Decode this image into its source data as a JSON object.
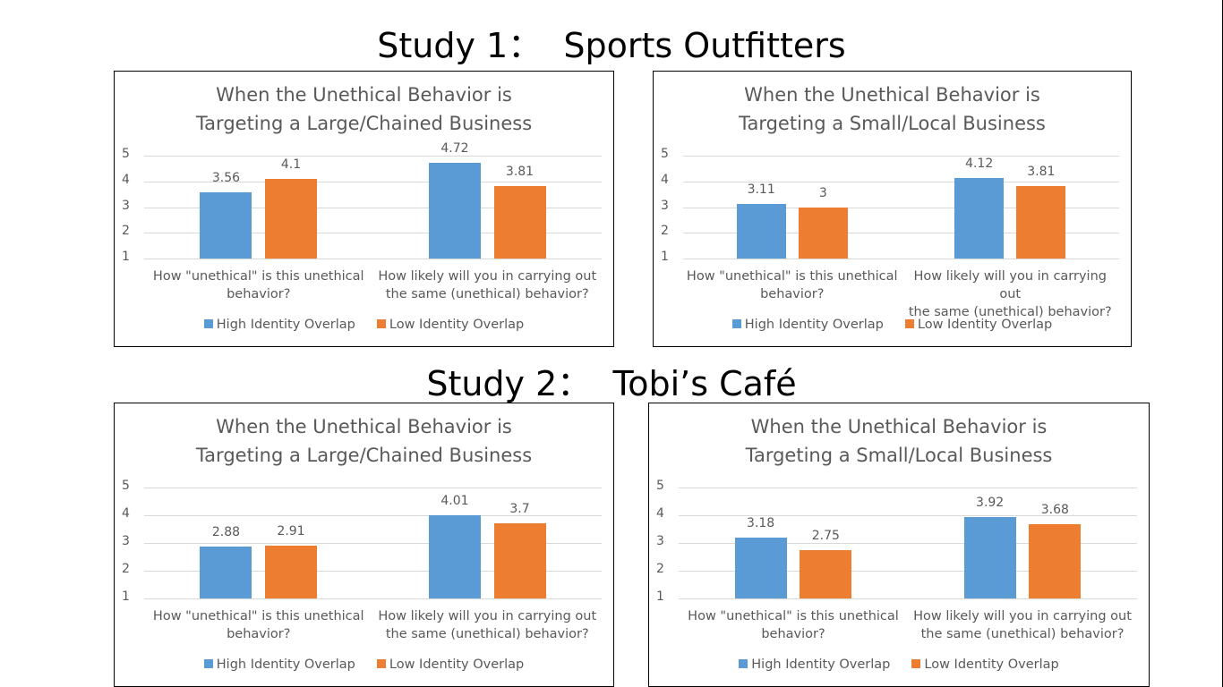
{
  "studies": [
    {
      "title": "Study 1：  Sports Outfitters"
    },
    {
      "title": "Study 2：  Tobi’s Café"
    }
  ],
  "colors": {
    "high": "#5B9BD5",
    "low": "#ED7D31"
  },
  "chart_data": [
    {
      "type": "bar",
      "title_lines": [
        "When the Unethical Behavior is",
        "Targeting a Large/Chained Business"
      ],
      "categories": [
        [
          "How \"unethical\" is this unethical",
          "behavior?"
        ],
        [
          "How likely will you in carrying out",
          "the same (unethical) behavior?"
        ]
      ],
      "series": [
        {
          "name": "High Identity Overlap",
          "values": [
            3.56,
            4.72
          ]
        },
        {
          "name": "Low Identity Overlap",
          "values": [
            4.1,
            3.81
          ]
        }
      ],
      "ylim": [
        1,
        5
      ],
      "yticks": [
        1,
        2,
        3,
        4,
        5
      ],
      "grid": true,
      "legend": "bottom"
    },
    {
      "type": "bar",
      "title_lines": [
        "When the Unethical Behavior is",
        "Targeting a Small/Local Business"
      ],
      "categories": [
        [
          "How \"unethical\" is this unethical",
          "behavior?"
        ],
        [
          "How likely will you in carrying out",
          "the same (unethical) behavior?"
        ]
      ],
      "series": [
        {
          "name": "High Identity Overlap",
          "values": [
            3.11,
            4.12
          ]
        },
        {
          "name": "Low Identity Overlap",
          "values": [
            3,
            3.81
          ]
        }
      ],
      "ylim": [
        1,
        5
      ],
      "yticks": [
        1,
        2,
        3,
        4,
        5
      ],
      "grid": true,
      "legend": "bottom"
    },
    {
      "type": "bar",
      "title_lines": [
        "When the Unethical Behavior is",
        "Targeting a Large/Chained Business"
      ],
      "categories": [
        [
          "How \"unethical\" is this unethical",
          "behavior?"
        ],
        [
          "How likely will you in carrying out",
          "the same (unethical) behavior?"
        ]
      ],
      "series": [
        {
          "name": "High Identity Overlap",
          "values": [
            2.88,
            4.01
          ]
        },
        {
          "name": "Low Identity Overlap",
          "values": [
            2.91,
            3.7
          ]
        }
      ],
      "ylim": [
        1,
        5
      ],
      "yticks": [
        1,
        2,
        3,
        4,
        5
      ],
      "grid": true,
      "legend": "bottom"
    },
    {
      "type": "bar",
      "title_lines": [
        "When the Unethical Behavior is",
        "Targeting a Small/Local Business"
      ],
      "categories": [
        [
          "How \"unethical\" is this unethical",
          "behavior?"
        ],
        [
          "How likely will you in carrying out",
          "the same (unethical) behavior?"
        ]
      ],
      "series": [
        {
          "name": "High Identity Overlap",
          "values": [
            3.18,
            3.92
          ]
        },
        {
          "name": "Low Identity Overlap",
          "values": [
            2.75,
            3.68
          ]
        }
      ],
      "ylim": [
        1,
        5
      ],
      "yticks": [
        1,
        2,
        3,
        4,
        5
      ],
      "grid": true,
      "legend": "bottom"
    }
  ]
}
